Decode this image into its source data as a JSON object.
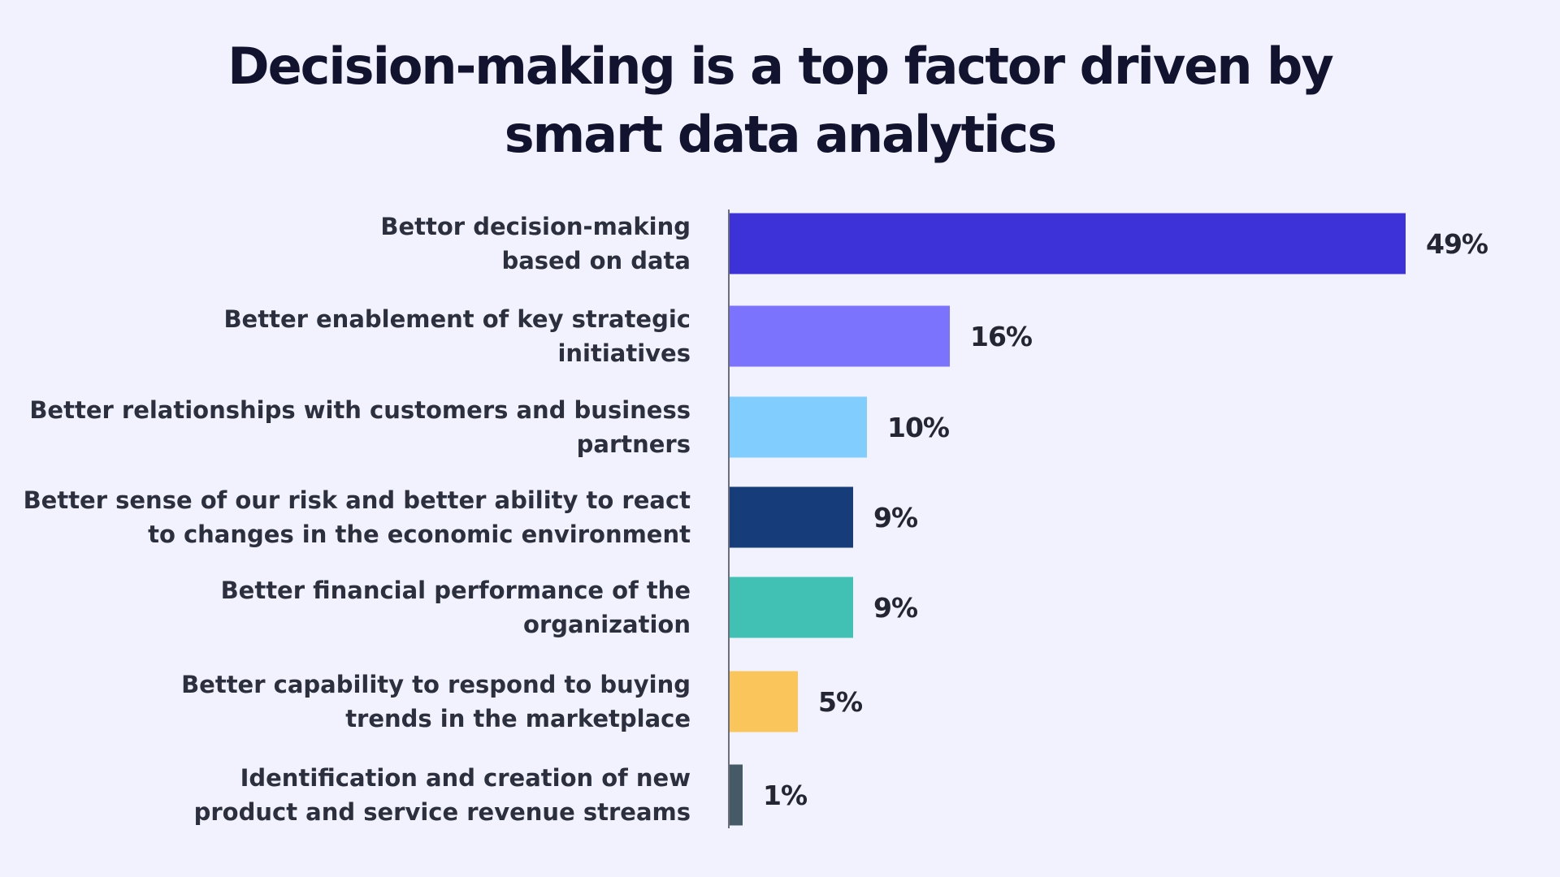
{
  "colors": {
    "background": "#f1f2fd",
    "title": "#12132e",
    "axis": "#6c6f7a",
    "label": "#2c2f3d"
  },
  "chart_data": {
    "type": "bar",
    "orientation": "horizontal",
    "title_lines": [
      "Decision-making is a top factor driven by",
      "smart data analytics"
    ],
    "categories": [
      [
        "Bettor decision-making",
        "based on data"
      ],
      [
        "Better enablement of key strategic",
        "initiatives"
      ],
      [
        "Better relationships with customers and business",
        "partners"
      ],
      [
        "Better sense of our risk and better ability to react",
        "to changes in the economic environment"
      ],
      [
        "Better financial performance of the",
        "organization"
      ],
      [
        "Better capability to respond to buying",
        "trends in the marketplace"
      ],
      [
        "Identification and creation of new",
        "product and service revenue streams"
      ]
    ],
    "values": [
      49,
      16,
      10,
      9,
      9,
      5,
      1
    ],
    "value_labels": [
      "49%",
      "16%",
      "10%",
      "9%",
      "9%",
      "5%",
      "1%"
    ],
    "bar_colors": [
      "#3c32d8",
      "#7b73fd",
      "#80cdfe",
      "#163c7a",
      "#41c1b3",
      "#fac55b",
      "#455a66"
    ],
    "xlim": [
      0,
      49
    ],
    "grid": false,
    "legend": "none"
  }
}
